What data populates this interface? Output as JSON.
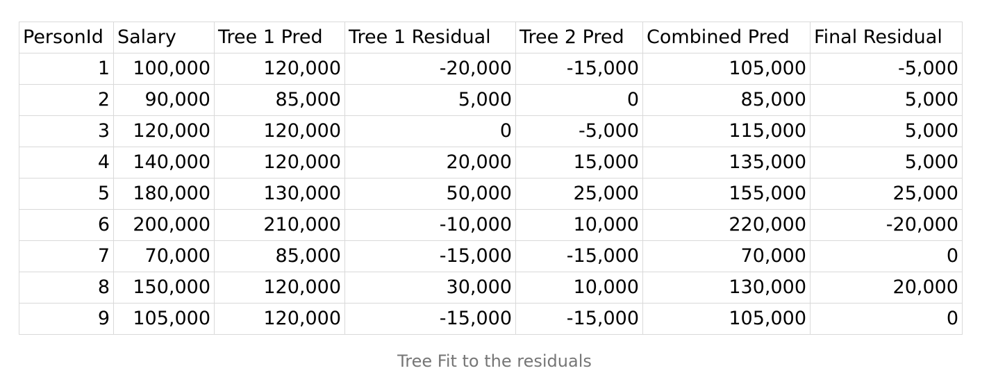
{
  "table": {
    "headers": [
      "PersonId",
      "Salary",
      "Tree 1 Pred",
      "Tree 1 Residual",
      "Tree 2 Pred",
      "Combined Pred",
      "Final Residual"
    ],
    "rows": [
      [
        "1",
        "100,000",
        "120,000",
        "-20,000",
        "-15,000",
        "105,000",
        "-5,000"
      ],
      [
        "2",
        "90,000",
        "85,000",
        "5,000",
        "0",
        "85,000",
        "5,000"
      ],
      [
        "3",
        "120,000",
        "120,000",
        "0",
        "-5,000",
        "115,000",
        "5,000"
      ],
      [
        "4",
        "140,000",
        "120,000",
        "20,000",
        "15,000",
        "135,000",
        "5,000"
      ],
      [
        "5",
        "180,000",
        "130,000",
        "50,000",
        "25,000",
        "155,000",
        "25,000"
      ],
      [
        "6",
        "200,000",
        "210,000",
        "-10,000",
        "10,000",
        "220,000",
        "-20,000"
      ],
      [
        "7",
        "70,000",
        "85,000",
        "-15,000",
        "-15,000",
        "70,000",
        "0"
      ],
      [
        "8",
        "150,000",
        "120,000",
        "30,000",
        "10,000",
        "130,000",
        "20,000"
      ],
      [
        "9",
        "105,000",
        "120,000",
        "-15,000",
        "-15,000",
        "105,000",
        "0"
      ]
    ]
  },
  "caption": "Tree Fit to the residuals"
}
